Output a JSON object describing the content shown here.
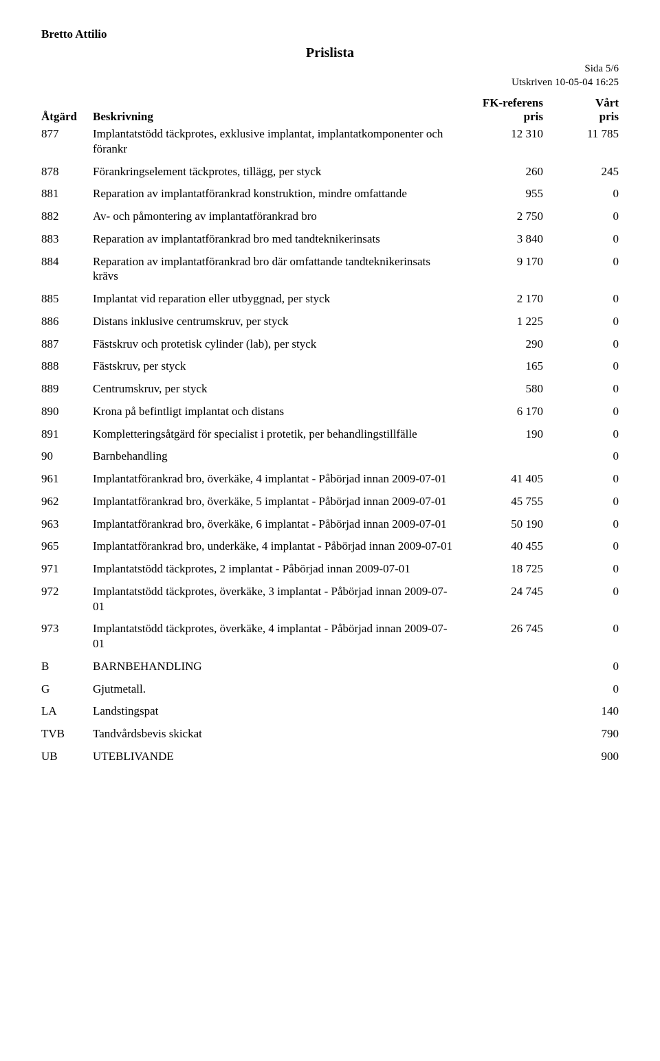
{
  "header": {
    "name": "Bretto Attilio",
    "title": "Prislista",
    "page_label": "Sida 5/6",
    "printed_label": "Utskriven 10-05-04 16:25"
  },
  "columns": {
    "code": "Åtgärd",
    "desc": "Beskrivning",
    "ref_line1": "FK-referens",
    "ref_line2": "pris",
    "price_line1": "Vårt",
    "price_line2": "pris"
  },
  "rows": [
    {
      "code": "877",
      "desc": "Implantatstödd täckprotes, exklusive implantat, implantatkomponenter och förankr",
      "ref": "12 310",
      "price": "11 785"
    },
    {
      "code": "878",
      "desc": "Förankringselement täckprotes, tillägg, per styck",
      "ref": "260",
      "price": "245"
    },
    {
      "code": "881",
      "desc": "Reparation av implantatförankrad konstruktion, mindre omfattande",
      "ref": "955",
      "price": "0"
    },
    {
      "code": "882",
      "desc": "Av- och påmontering av implantatförankrad bro",
      "ref": "2 750",
      "price": "0"
    },
    {
      "code": "883",
      "desc": "Reparation av implantatförankrad bro med tandteknikerinsats",
      "ref": "3 840",
      "price": "0"
    },
    {
      "code": "884",
      "desc": "Reparation av implantatförankrad bro där omfattande tandteknikerinsats krävs",
      "ref": "9 170",
      "price": "0"
    },
    {
      "code": "885",
      "desc": "Implantat vid reparation eller utbyggnad, per styck",
      "ref": "2 170",
      "price": "0"
    },
    {
      "code": "886",
      "desc": "Distans inklusive centrumskruv, per styck",
      "ref": "1 225",
      "price": "0"
    },
    {
      "code": "887",
      "desc": "Fästskruv och protetisk cylinder (lab), per styck",
      "ref": "290",
      "price": "0"
    },
    {
      "code": "888",
      "desc": "Fästskruv, per styck",
      "ref": "165",
      "price": "0"
    },
    {
      "code": "889",
      "desc": "Centrumskruv, per styck",
      "ref": "580",
      "price": "0"
    },
    {
      "code": "890",
      "desc": "Krona på befintligt implantat och distans",
      "ref": "6 170",
      "price": "0"
    },
    {
      "code": "891",
      "desc": "Kompletteringsåtgärd för specialist i protetik, per behandlingstillfälle",
      "ref": "190",
      "price": "0"
    },
    {
      "code": "90",
      "desc": "Barnbehandling",
      "ref": "",
      "price": "0"
    },
    {
      "code": "961",
      "desc": "Implantatförankrad bro, överkäke, 4 implantat - Påbörjad innan 2009-07-01",
      "ref": "41 405",
      "price": "0"
    },
    {
      "code": "962",
      "desc": "Implantatförankrad bro, överkäke, 5  implantat - Påbörjad innan 2009-07-01",
      "ref": "45 755",
      "price": "0"
    },
    {
      "code": "963",
      "desc": "Implantatförankrad bro, överkäke, 6 implantat - Påbörjad innan 2009-07-01",
      "ref": "50 190",
      "price": "0"
    },
    {
      "code": "965",
      "desc": "Implantatförankrad bro, underkäke, 4 implantat - Påbörjad innan 2009-07-01",
      "ref": "40 455",
      "price": "0"
    },
    {
      "code": "971",
      "desc": "Implantatstödd täckprotes, 2 implantat - Påbörjad innan 2009-07-01",
      "ref": "18 725",
      "price": "0"
    },
    {
      "code": "972",
      "desc": "Implantatstödd täckprotes, överkäke, 3 implantat - Påbörjad innan 2009-07-01",
      "ref": "24 745",
      "price": "0"
    },
    {
      "code": "973",
      "desc": "Implantatstödd täckprotes, överkäke, 4 implantat - Påbörjad innan 2009-07-01",
      "ref": "26 745",
      "price": "0"
    },
    {
      "code": "B",
      "desc": "BARNBEHANDLING",
      "ref": "",
      "price": "0"
    },
    {
      "code": "G",
      "desc": "Gjutmetall.",
      "ref": "",
      "price": "0"
    },
    {
      "code": "LA",
      "desc": "Landstingspat",
      "ref": "",
      "price": "140"
    },
    {
      "code": "TVB",
      "desc": "Tandvårdsbevis skickat",
      "ref": "",
      "price": "790"
    },
    {
      "code": "UB",
      "desc": "UTEBLIVANDE",
      "ref": "",
      "price": "900"
    }
  ]
}
